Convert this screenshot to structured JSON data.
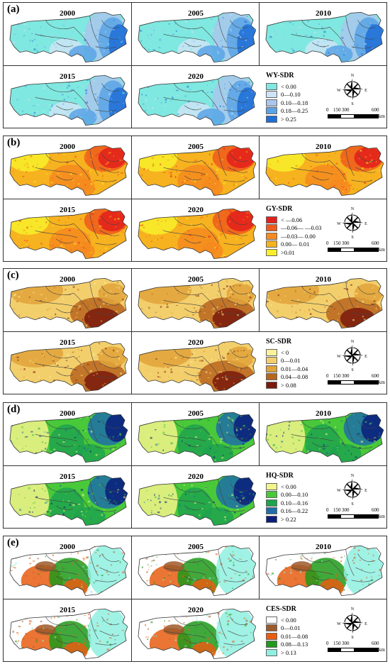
{
  "years": [
    "2000",
    "2005",
    "2010",
    "2015",
    "2020"
  ],
  "panels": [
    {
      "label": "(a)",
      "legend_title": "WY-SDR",
      "items": [
        {
          "label": "< 0.00",
          "color": "#7fe8e0"
        },
        {
          "label": "0—0.10",
          "color": "#cde4f5"
        },
        {
          "label": "0.10—0.18",
          "color": "#a9c7ec"
        },
        {
          "label": "0.18—0.25",
          "color": "#5aa3e6"
        },
        {
          "label": "> 0.25",
          "color": "#1f6fd6"
        }
      ]
    },
    {
      "label": "(b)",
      "legend_title": "GY-SDR",
      "items": [
        {
          "label": "< —0.06",
          "color": "#e3201b"
        },
        {
          "label": "—0.06— —0.03",
          "color": "#ef5a1c"
        },
        {
          "label": "—0.03— 0.00",
          "color": "#f58a1f"
        },
        {
          "label": "0.00— 0.01",
          "color": "#f7b21f"
        },
        {
          "label": ">0.01",
          "color": "#f8ee2a"
        }
      ]
    },
    {
      "label": "(c)",
      "legend_title": "SC-SDR",
      "items": [
        {
          "label": "< 0",
          "color": "#fbf29a"
        },
        {
          "label": "0—0.01",
          "color": "#f3cf6c"
        },
        {
          "label": "0.01—0.04",
          "color": "#e0a33a"
        },
        {
          "label": "0.04—0.08",
          "color": "#b8651d"
        },
        {
          "label": "> 0.08",
          "color": "#7a1a0c"
        }
      ]
    },
    {
      "label": "(d)",
      "legend_title": "HQ-SDR",
      "items": [
        {
          "label": "< 0.00",
          "color": "#f2f58a"
        },
        {
          "label": "0.00—0.10",
          "color": "#49c93a"
        },
        {
          "label": "0.10—0.16",
          "color": "#1ea34e"
        },
        {
          "label": "0.16—0.22",
          "color": "#1e6fa8"
        },
        {
          "label": "> 0.22",
          "color": "#0b1f7a"
        }
      ]
    },
    {
      "label": "(e)",
      "legend_title": "CES-SDR",
      "items": [
        {
          "label": "< 0.00",
          "color": "#ffffff"
        },
        {
          "label": "0—0.01",
          "color": "#9c5a2c"
        },
        {
          "label": "0.01—0.08",
          "color": "#e85d10"
        },
        {
          "label": "0.08—0.13",
          "color": "#1f9a1a"
        },
        {
          "label": "> 0.13",
          "color": "#8ff0e0"
        }
      ]
    }
  ],
  "compass": {
    "n": "N",
    "s": "S",
    "e": "E",
    "w": "W"
  },
  "scale": {
    "t0": "0",
    "t1": "150",
    "t2": "300",
    "t3": "600",
    "unit": "km"
  }
}
